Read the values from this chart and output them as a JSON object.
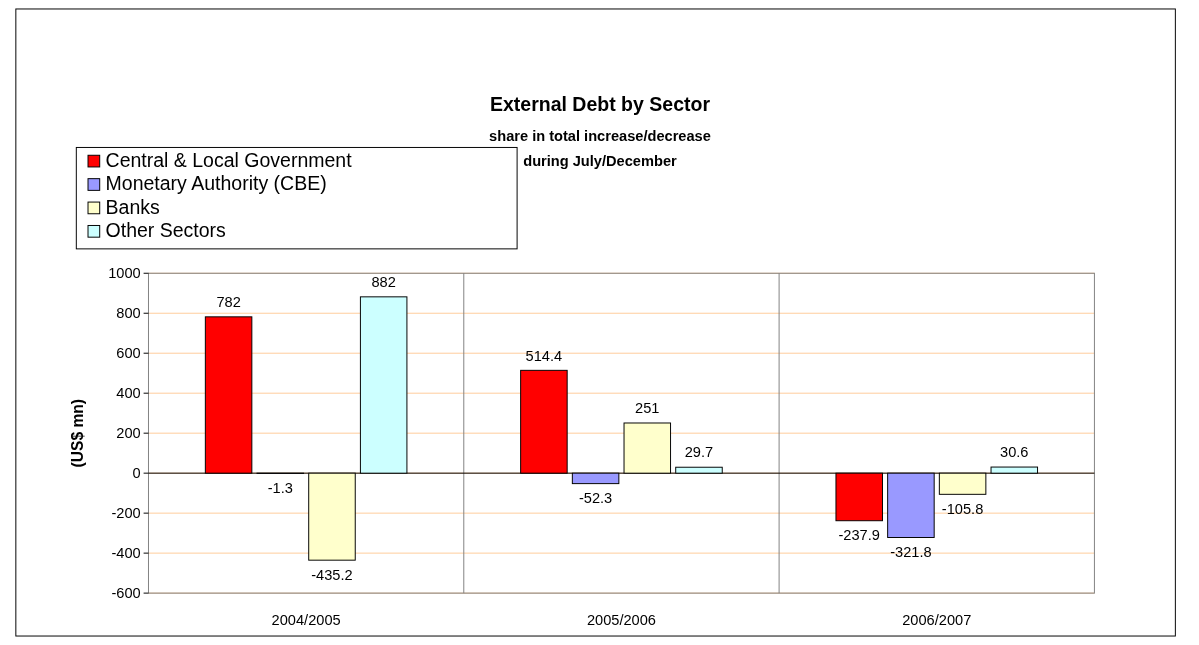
{
  "chart_data": {
    "type": "bar",
    "title": "External Debt by Sector",
    "subtitle": "share in total increase/decrease\nduring July/December",
    "ylabel": "(US$ mn)",
    "categories": [
      "2004/2005",
      "2005/2006",
      "2006/2007"
    ],
    "series": [
      {
        "name": "Central & Local Government",
        "color": "#ff0000",
        "values": [
          782,
          514.4,
          -237.9
        ]
      },
      {
        "name": "Monetary Authority (CBE)",
        "color": "#9999ff",
        "values": [
          -1.3,
          -52.3,
          -321.8
        ]
      },
      {
        "name": "Banks",
        "color": "#ffffcc",
        "values": [
          -435.2,
          251,
          -105.8
        ]
      },
      {
        "name": "Other Sectors",
        "color": "#ccffff",
        "values": [
          882,
          29.7,
          30.6
        ]
      }
    ],
    "ylim": [
      -600,
      1000
    ],
    "yticks": [
      -600,
      -400,
      -200,
      0,
      200,
      400,
      600,
      800,
      1000
    ],
    "grid": "y",
    "legend": "top left",
    "data_labels": true
  }
}
